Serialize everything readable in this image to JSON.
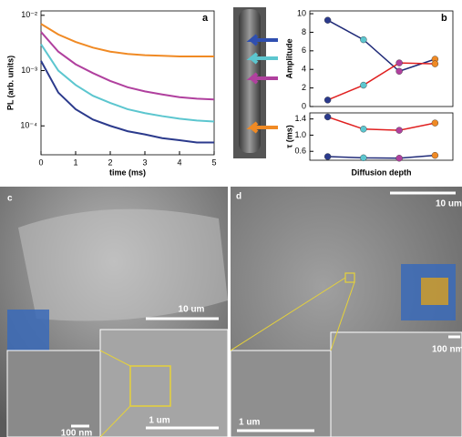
{
  "chart_data": [
    {
      "type": "line",
      "panel_label": "a",
      "xlabel": "time (ms)",
      "ylabel": "PL (arb. units)",
      "log_y": true,
      "x": [
        0,
        0.5,
        1,
        1.5,
        2,
        2.5,
        3,
        3.5,
        4,
        4.5,
        5
      ],
      "xlim": [
        0,
        5
      ],
      "xticks": [
        0,
        1,
        2,
        3,
        4,
        5
      ],
      "ylim": [
        3e-05,
        0.012
      ],
      "yticks": [
        {
          "value": 0.0001,
          "label": "10⁻⁴"
        },
        {
          "value": 0.001,
          "label": "10⁻³"
        },
        {
          "value": 0.01,
          "label": "10⁻²"
        }
      ],
      "series": [
        {
          "color": "#f08a24",
          "values": [
            0.007,
            0.0045,
            0.0033,
            0.0026,
            0.0022,
            0.002,
            0.0019,
            0.00185,
            0.0018,
            0.0018,
            0.0018
          ]
        },
        {
          "color": "#b0409e",
          "values": [
            0.005,
            0.0022,
            0.0013,
            0.0009,
            0.00065,
            0.0005,
            0.00042,
            0.00037,
            0.00033,
            0.00031,
            0.0003
          ]
        },
        {
          "color": "#5cc6cf",
          "values": [
            0.003,
            0.001,
            0.00055,
            0.00035,
            0.00026,
            0.0002,
            0.00017,
            0.00015,
            0.000135,
            0.000125,
            0.00012
          ]
        },
        {
          "color": "#2b3a8c",
          "values": [
            0.0015,
            0.0004,
            0.0002,
            0.00013,
            0.0001,
            8e-05,
            7e-05,
            6e-05,
            5.5e-05,
            5e-05,
            5e-05
          ]
        }
      ]
    },
    {
      "type": "line",
      "panel_label": "b",
      "ylabel": "Amplitude",
      "categories": [
        null,
        null,
        null,
        null
      ],
      "ylim": [
        0,
        10.3
      ],
      "yticks": [
        0,
        2,
        4,
        6,
        8,
        10
      ],
      "series": [
        {
          "color": "#1f2a78",
          "values": [
            9.3,
            7.2,
            3.8,
            5.1
          ],
          "point_colors": [
            "#2b3a8c",
            "#5cc6cf",
            "#b0409e",
            "#f08a24"
          ]
        },
        {
          "color": "#e02020",
          "values": [
            0.7,
            2.3,
            4.7,
            4.6
          ],
          "point_colors": [
            "#2b3a8c",
            "#5cc6cf",
            "#b0409e",
            "#f08a24"
          ]
        }
      ]
    },
    {
      "type": "line",
      "xlabel": "Diffusion depth",
      "ylabel": "τ (ms)",
      "categories": [
        null,
        null,
        null,
        null
      ],
      "ylim": [
        0.38,
        1.55
      ],
      "yticks": [
        0.6,
        {
          "value": 1,
          "label": "1.0"
        },
        1.4
      ],
      "series": [
        {
          "color": "#e02020",
          "values": [
            1.45,
            1.15,
            1.12,
            1.3
          ],
          "point_colors": [
            "#2b3a8c",
            "#5cc6cf",
            "#b0409e",
            "#f08a24"
          ]
        },
        {
          "color": "#1f2a78",
          "values": [
            0.47,
            0.44,
            0.43,
            0.5
          ],
          "point_colors": [
            "#2b3a8c",
            "#5cc6cf",
            "#b0409e",
            "#f08a24"
          ]
        }
      ]
    }
  ],
  "images": [
    {
      "label": "c",
      "scale_bars": [
        "10 um",
        "1 um",
        "100 nm"
      ]
    },
    {
      "label": "d",
      "scale_bars": [
        "10 um",
        "100 nm",
        "1 um"
      ]
    }
  ]
}
